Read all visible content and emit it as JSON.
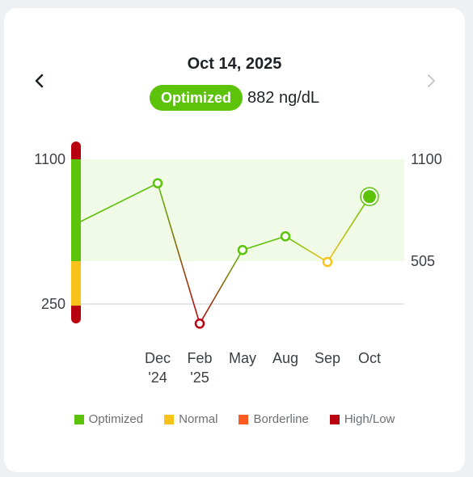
{
  "header": {
    "date": "Oct 14, 2025",
    "status_label": "Optimized",
    "status_value": "882 ng/dL"
  },
  "nav": {
    "prev_icon": "chevron-left-icon",
    "next_icon": "chevron-right-icon"
  },
  "colors": {
    "optimized": "#5cc30a",
    "normal": "#f8c21b",
    "borderline": "#ff5a1f",
    "high_low": "#b8000f",
    "band": "#f1fae6",
    "disabled": "#c7cbd0"
  },
  "legend": [
    {
      "label": "Optimized",
      "color": "#5cc30a"
    },
    {
      "label": "Normal",
      "color": "#f8c21b"
    },
    {
      "label": "Borderline",
      "color": "#ff5a1f"
    },
    {
      "label": "High/Low",
      "color": "#b8000f"
    }
  ],
  "chart_data": {
    "type": "line",
    "left_ticks": [
      "1100",
      "250"
    ],
    "right_ticks": [
      "1100",
      "505"
    ],
    "y_tick_values": {
      "upper": 1100,
      "optimized_low": 505,
      "lower": 250
    },
    "optimized_range": [
      505,
      1100
    ],
    "categories": [
      {
        "line1": "Dec",
        "line2": "'24"
      },
      {
        "line1": "Feb",
        "line2": "'25"
      },
      {
        "line1": "May",
        "line2": ""
      },
      {
        "line1": "Aug",
        "line2": ""
      },
      {
        "line1": "Sep",
        "line2": ""
      },
      {
        "line1": "Oct",
        "line2": ""
      }
    ],
    "start_value": 730,
    "values": [
      960,
      140,
      570,
      650,
      500,
      882
    ],
    "point_status": [
      "optimized",
      "high_low",
      "optimized",
      "optimized",
      "normal",
      "optimized"
    ],
    "selected_index": 5
  }
}
